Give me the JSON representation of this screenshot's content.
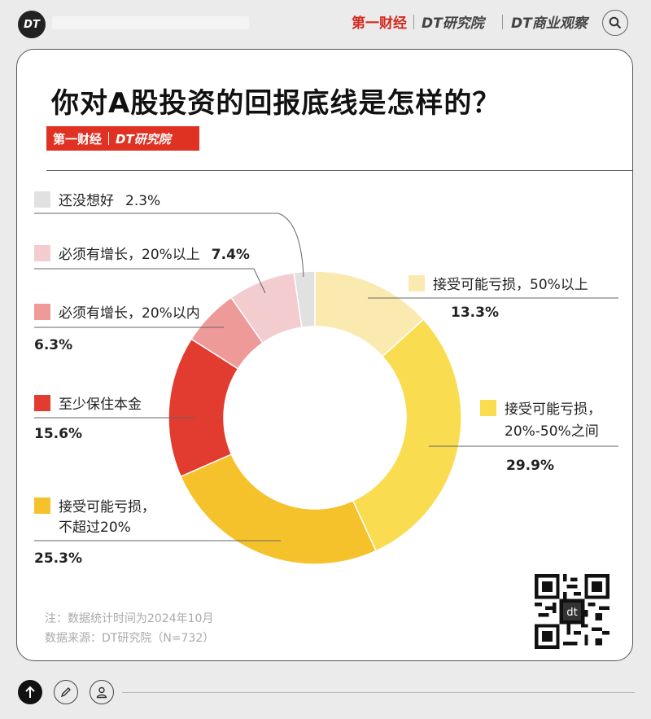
{
  "header": {
    "avatar_text": "DT",
    "brands": [
      "第一财经",
      "DT研究院",
      "DT商业观察"
    ]
  },
  "card": {
    "title": "你对A股投资的回报底线是怎样的？",
    "brand_badge": [
      "第一财经",
      "DT研究院"
    ],
    "notes": [
      "注：数据统计时间为2024年10月",
      "数据来源：DT研究院（N=732）"
    ]
  },
  "chart_data": {
    "type": "pie",
    "donut": true,
    "title": "你对A股投资的回报底线是怎样的？",
    "slices": [
      {
        "label": "接受可能亏损，50%以上",
        "value": 13.3,
        "display": "13.3%",
        "color": "#fbeab0"
      },
      {
        "label": "接受可能亏损，20%-50%之间",
        "value": 29.9,
        "display": "29.9%",
        "color": "#f9dc4f"
      },
      {
        "label": "接受可能亏损，不超过20%",
        "value": 25.3,
        "display": "25.3%",
        "color": "#f5c22c"
      },
      {
        "label": "至少保住本金",
        "value": 15.6,
        "display": "15.6%",
        "color": "#e23b2f"
      },
      {
        "label": "必须有增长，20%以内",
        "value": 6.3,
        "display": "6.3%",
        "color": "#ee9a99"
      },
      {
        "label": "必须有增长，20%以上",
        "value": 7.4,
        "display": "7.4%",
        "color": "#f3ccd0"
      },
      {
        "label": "还没想好",
        "value": 2.3,
        "display": "2.3%",
        "color": "#e1e1e1"
      }
    ],
    "legend_placement": "around"
  },
  "labels": {
    "s0": {
      "line1": "接受可能亏损，50%以上"
    },
    "s1": {
      "line1": "接受可能亏损，",
      "line2": "20%-50%之间"
    },
    "s2": {
      "line1": "接受可能亏损，",
      "line2": "不超过20%"
    },
    "s3": {
      "line1": "至少保住本金"
    },
    "s4": {
      "line1": "必须有增长，20%以内"
    },
    "s5": {
      "line1": "必须有增长，20%以上"
    },
    "s6": {
      "line1": "还没想好"
    }
  },
  "icons": [
    "search-icon",
    "arrow-up-icon",
    "pencil-icon",
    "user-icon",
    "qr-code"
  ]
}
